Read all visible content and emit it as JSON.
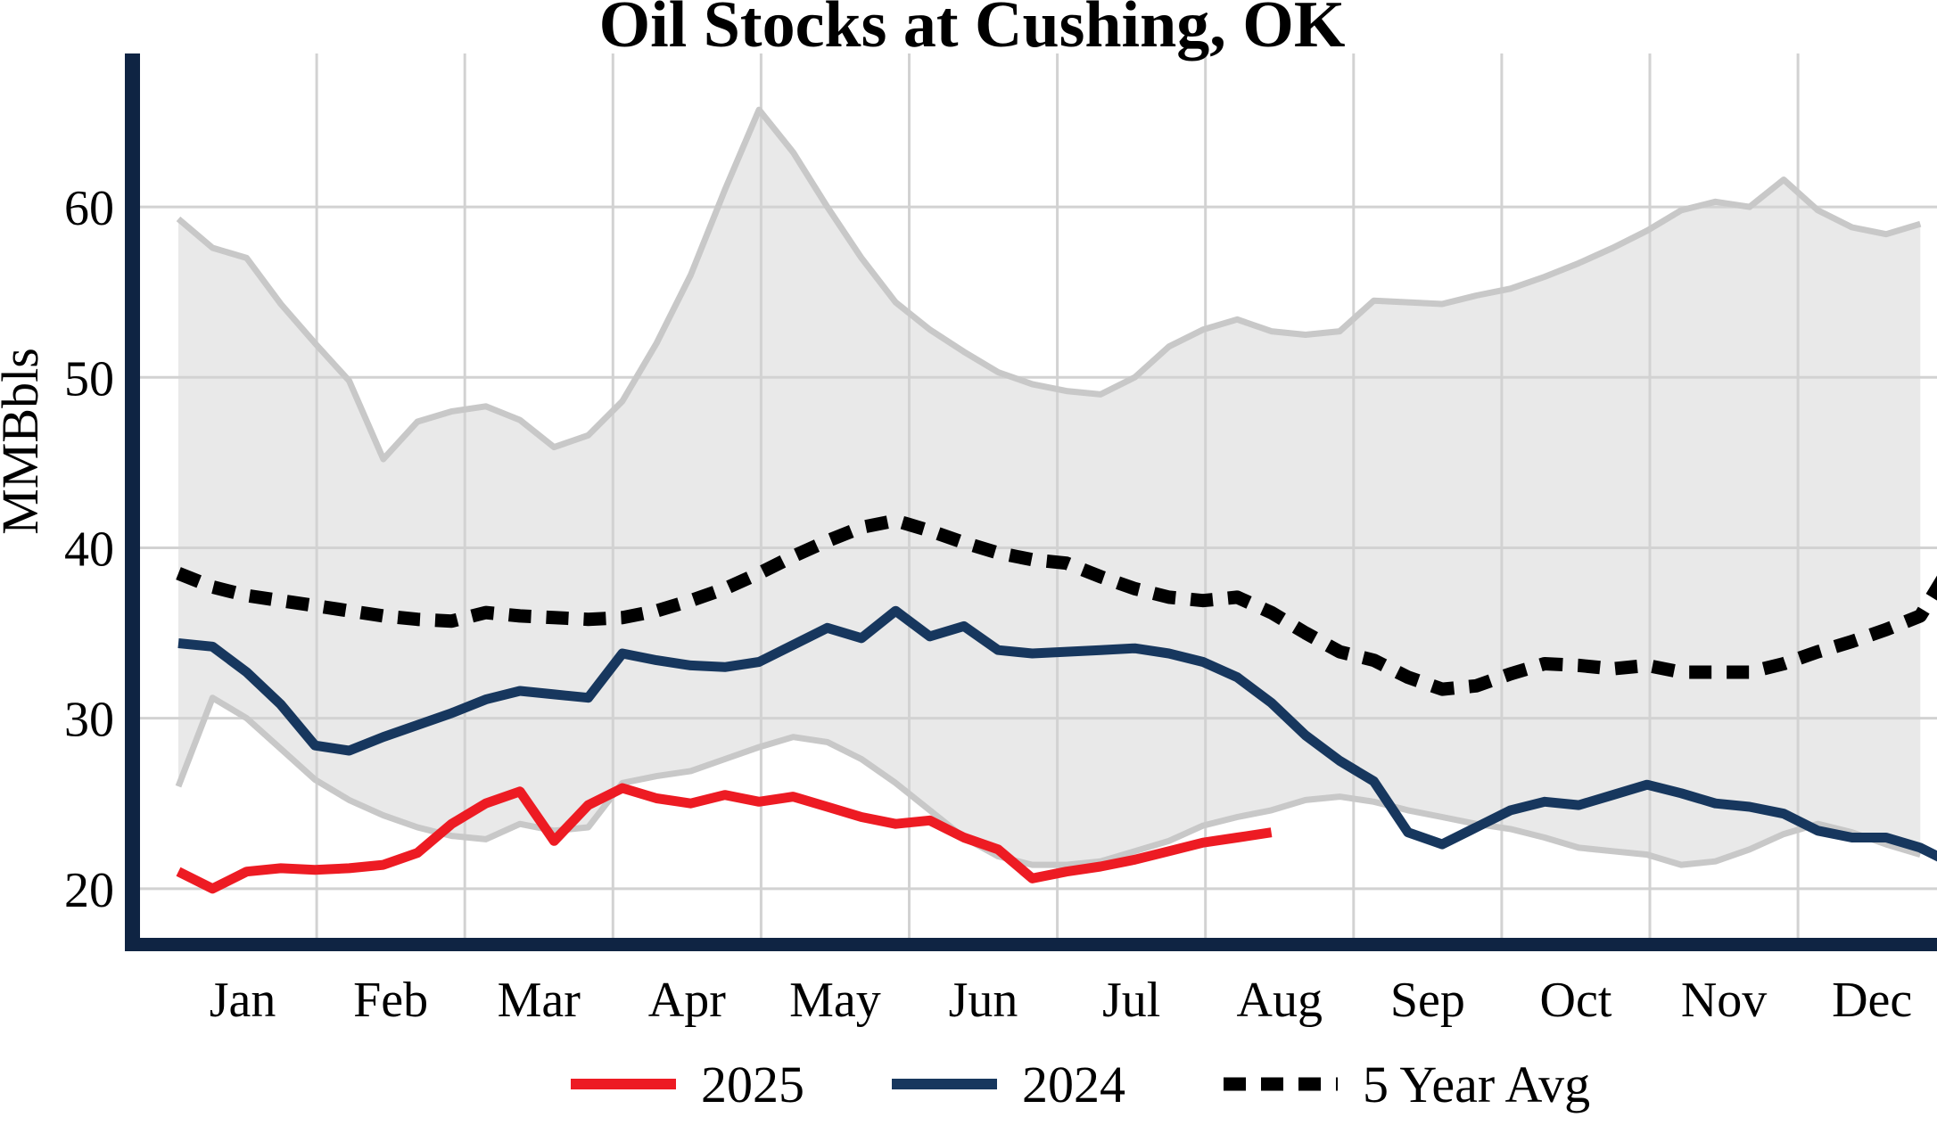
{
  "title": "Oil Stocks at Cushing, OK",
  "y_axis": {
    "label": "MMBbls",
    "ticks": [
      20,
      30,
      40,
      50,
      60
    ]
  },
  "x_axis": {
    "months": [
      "Jan",
      "Feb",
      "Mar",
      "Apr",
      "May",
      "Jun",
      "Jul",
      "Aug",
      "Sep",
      "Oct",
      "Nov",
      "Dec"
    ]
  },
  "legend": {
    "items": [
      {
        "label": "2025",
        "style": "solid",
        "color": "#ed1b23"
      },
      {
        "label": "2024",
        "style": "solid",
        "color": "#17375e"
      },
      {
        "label": "5 Year Avg",
        "style": "dotted",
        "color": "#000000"
      }
    ]
  },
  "colors": {
    "red": "#ed1b23",
    "navy": "#17375e",
    "black": "#000000",
    "band_fill": "#e9e9e9",
    "band_edge": "#c8c8c8",
    "grid": "#d2d2d2",
    "spine": "#0f2443"
  },
  "chart_data": {
    "type": "line",
    "title": "Oil Stocks at Cushing, OK",
    "ylabel": "MMBbls",
    "unit": "MMBbls",
    "x_unit": "week of year (Jan-Dec)",
    "ylim": [
      16.8,
      69.0
    ],
    "grid": true,
    "legend_position": "bottom center",
    "categories_months": [
      "Jan",
      "Feb",
      "Mar",
      "Apr",
      "May",
      "Jun",
      "Jul",
      "Aug",
      "Sep",
      "Oct",
      "Nov",
      "Dec"
    ],
    "series": [
      {
        "name": "2025",
        "color": "#ed1b23",
        "style": "solid",
        "values": [
          21.0,
          20.0,
          21.0,
          21.2,
          21.1,
          21.2,
          21.4,
          22.1,
          23.8,
          25.0,
          25.7,
          22.8,
          24.9,
          25.9,
          25.3,
          25.0,
          25.5,
          25.1,
          25.4,
          24.8,
          24.2,
          23.8,
          24.0,
          23.0,
          22.3,
          20.6,
          21.0,
          21.3,
          21.7,
          22.2,
          22.7,
          23.0,
          23.3
        ]
      },
      {
        "name": "2024",
        "color": "#17375e",
        "style": "solid",
        "values": [
          34.4,
          34.2,
          32.7,
          30.8,
          28.4,
          28.1,
          28.9,
          29.6,
          30.3,
          31.1,
          31.6,
          31.4,
          31.2,
          33.8,
          33.4,
          33.1,
          33.0,
          33.3,
          34.3,
          35.3,
          34.7,
          36.3,
          34.8,
          35.4,
          34.0,
          33.8,
          33.9,
          34.0,
          34.1,
          33.8,
          33.3,
          32.4,
          30.9,
          29.0,
          27.5,
          26.3,
          23.3,
          22.6,
          23.6,
          24.6,
          25.1,
          24.9,
          25.5,
          26.1,
          25.6,
          25.0,
          24.8,
          24.4,
          23.4,
          23.0,
          23.0,
          22.4,
          21.4
        ]
      },
      {
        "name": "5 Year Avg",
        "color": "#000000",
        "style": "dotted",
        "values": [
          38.5,
          37.7,
          37.2,
          36.9,
          36.6,
          36.3,
          36.0,
          35.8,
          35.7,
          36.2,
          36.0,
          35.9,
          35.8,
          35.9,
          36.3,
          36.9,
          37.6,
          38.5,
          39.5,
          40.4,
          41.2,
          41.6,
          41.0,
          40.3,
          39.7,
          39.3,
          39.1,
          38.3,
          37.6,
          37.1,
          36.9,
          37.1,
          36.2,
          35.0,
          33.9,
          33.4,
          32.4,
          31.7,
          31.9,
          32.6,
          33.2,
          33.1,
          32.9,
          33.1,
          32.7,
          32.7,
          32.7,
          33.2,
          33.9,
          34.5,
          35.2,
          36.0,
          39.3
        ]
      }
    ],
    "band": {
      "name": "5 year range (shaded)",
      "fill": "#e9e9e9",
      "edge": "#c8c8c8",
      "top": [
        59.3,
        57.6,
        57.0,
        54.3,
        52.0,
        49.8,
        45.2,
        47.4,
        48.0,
        48.3,
        47.5,
        45.9,
        46.6,
        48.6,
        52.0,
        56.0,
        61.0,
        65.7,
        63.2,
        60.0,
        57.0,
        54.4,
        52.8,
        51.5,
        50.3,
        49.6,
        49.2,
        49.0,
        50.0,
        51.8,
        52.8,
        53.4,
        52.7,
        52.5,
        52.7,
        54.5,
        54.4,
        54.3,
        54.8,
        55.2,
        55.9,
        56.7,
        57.6,
        58.6,
        59.8,
        60.3,
        60.0,
        61.6,
        59.8,
        58.8,
        58.4,
        59.0
      ],
      "bottom": [
        26.0,
        31.2,
        30.0,
        28.2,
        26.4,
        25.2,
        24.3,
        23.6,
        23.1,
        22.9,
        23.8,
        23.4,
        23.6,
        26.2,
        26.6,
        26.9,
        27.6,
        28.3,
        28.9,
        28.6,
        27.6,
        26.2,
        24.6,
        23.0,
        21.9,
        21.4,
        21.4,
        21.6,
        22.2,
        22.8,
        23.7,
        24.2,
        24.6,
        25.2,
        25.4,
        25.1,
        24.6,
        24.2,
        23.8,
        23.5,
        23.0,
        22.4,
        22.2,
        22.0,
        21.4,
        21.6,
        22.3,
        23.2,
        23.8,
        23.3,
        22.6,
        22.0
      ]
    }
  }
}
